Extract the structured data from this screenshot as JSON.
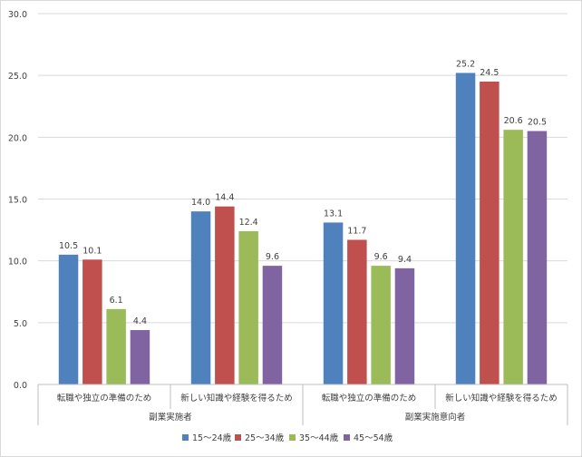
{
  "chart_data": {
    "type": "bar",
    "ylim": [
      0,
      30
    ],
    "y_ticks": [
      "0.0",
      "5.0",
      "10.0",
      "15.0",
      "20.0",
      "25.0",
      "30.0"
    ],
    "grid": true,
    "legend_position": "bottom",
    "groups": [
      {
        "label": "副業実施者",
        "categories": [
          "転職や独立の準備のため",
          "新しい知識や経験を得るため"
        ]
      },
      {
        "label": "副業実施意向者",
        "categories": [
          "転職や独立の準備のため",
          "新しい知識や経験を得るため"
        ]
      }
    ],
    "categories": [
      "転職や独立の準備のため",
      "新しい知識や経験を得るため",
      "転職や独立の準備のため",
      "新しい知識や経験を得るため"
    ],
    "series": [
      {
        "name": "15～24歳",
        "color": "#4f81bd",
        "values": [
          10.5,
          14.0,
          13.1,
          25.2
        ]
      },
      {
        "name": "25～34歳",
        "color": "#c0504d",
        "values": [
          10.1,
          14.4,
          11.7,
          24.5
        ]
      },
      {
        "name": "35～44歳",
        "color": "#9bbb59",
        "values": [
          6.1,
          12.4,
          9.6,
          20.6
        ]
      },
      {
        "name": "45～54歳",
        "color": "#8064a2",
        "values": [
          4.4,
          9.6,
          9.4,
          20.5
        ]
      }
    ],
    "value_labels": [
      [
        "10.5",
        "14.0",
        "13.1",
        "25.2"
      ],
      [
        "10.1",
        "14.4",
        "11.7",
        "24.5"
      ],
      [
        "6.1",
        "12.4",
        "9.6",
        "20.6"
      ],
      [
        "4.4",
        "9.6",
        "9.4",
        "20.5"
      ]
    ]
  }
}
